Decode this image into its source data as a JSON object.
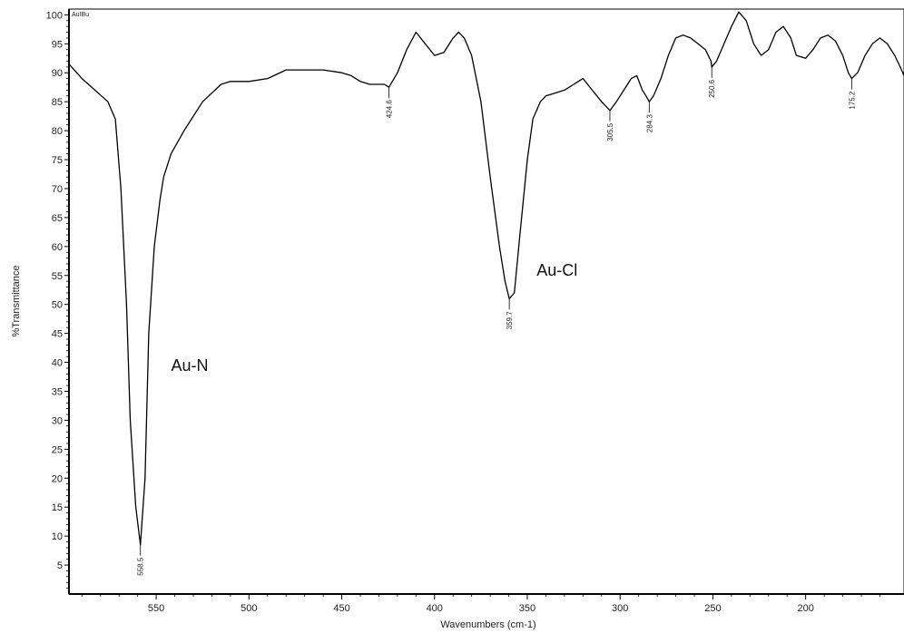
{
  "chart_data": {
    "type": "line",
    "sample_label": "AuIBu",
    "xlabel": "Wavenumbers (cm-1)",
    "ylabel": "%Transmittance",
    "xlim": [
      597,
      147
    ],
    "ylim": [
      0,
      101
    ],
    "x_reversed": true,
    "grid": false,
    "xticks": [
      550,
      500,
      450,
      400,
      350,
      300,
      250,
      200
    ],
    "yticks": [
      5,
      10,
      15,
      20,
      25,
      30,
      35,
      40,
      45,
      50,
      55,
      60,
      65,
      70,
      75,
      80,
      85,
      90,
      95,
      100
    ],
    "line_color": "#000000",
    "series": [
      {
        "x": [
          597,
          590,
          583,
          576,
          572,
          569,
          566,
          564,
          561,
          558.5,
          556,
          554,
          551,
          548,
          546,
          542,
          535,
          525,
          515,
          510,
          500,
          490,
          480,
          470,
          460,
          450,
          445,
          440,
          435,
          430,
          427,
          424.6,
          420,
          415,
          410,
          405,
          400,
          395,
          390,
          387,
          384,
          380,
          375,
          370,
          365,
          362,
          359.7,
          357,
          354,
          350,
          347,
          343,
          340,
          335,
          330,
          325,
          320,
          315,
          310,
          307,
          305.5,
          302,
          298,
          294,
          291,
          288,
          286,
          284.3,
          282,
          278,
          274,
          270,
          266,
          262,
          258,
          254,
          251,
          250.6,
          248,
          244,
          240,
          236,
          232,
          228,
          224,
          220,
          216,
          212,
          208,
          205,
          200,
          196,
          192,
          188,
          184,
          180,
          177,
          175.2,
          172,
          168,
          164,
          160,
          156,
          152,
          149,
          147
        ],
        "y": [
          91.5,
          89,
          87,
          85,
          82,
          70,
          50,
          30,
          15,
          8.5,
          20,
          45,
          60,
          68,
          72,
          76,
          80,
          85,
          88,
          88.5,
          88.5,
          89,
          90.5,
          90.5,
          90.5,
          90,
          89.5,
          88.5,
          88,
          88,
          88,
          87.5,
          90,
          94,
          97,
          95,
          93,
          93.5,
          96,
          97,
          96,
          93,
          85,
          72,
          60,
          54,
          51,
          52,
          62,
          75,
          82,
          85,
          86,
          86.5,
          87,
          88,
          89,
          87,
          85,
          84,
          83.5,
          85,
          87,
          89,
          89.5,
          87,
          86,
          85,
          86,
          89,
          93,
          96,
          96.5,
          96,
          95,
          94,
          92,
          91,
          92,
          95,
          98,
          100.5,
          99,
          95,
          93,
          94,
          97,
          98,
          96,
          93,
          92.5,
          94,
          96,
          96.5,
          95.5,
          93,
          90,
          89,
          90,
          93,
          95,
          96,
          95,
          93,
          91,
          89.5
        ]
      }
    ],
    "peaks": [
      {
        "x": 558.5,
        "label": "558.5"
      },
      {
        "x": 424.6,
        "label": "424.6"
      },
      {
        "x": 359.7,
        "label": "359.7"
      },
      {
        "x": 305.5,
        "label": "305.5"
      },
      {
        "x": 284.3,
        "label": "284.3"
      },
      {
        "x": 250.6,
        "label": "250.6"
      },
      {
        "x": 175.2,
        "label": "175.2"
      }
    ],
    "annotations": [
      {
        "text": "Au-N",
        "x": 542,
        "y": 38.5
      },
      {
        "text": "Au-Cl",
        "x": 345,
        "y": 55
      }
    ]
  }
}
